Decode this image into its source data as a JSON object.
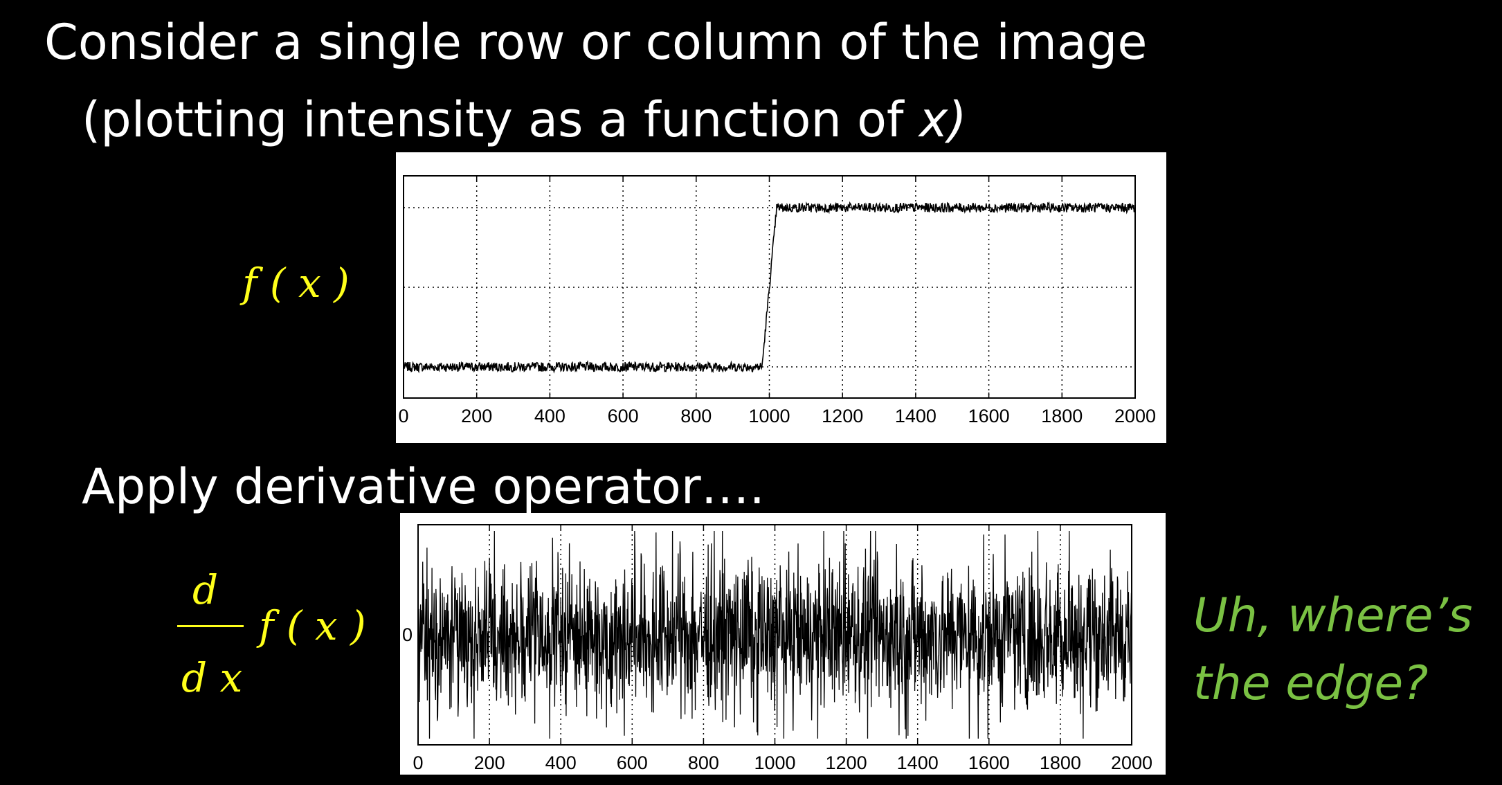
{
  "text": {
    "line1": "Consider a single row or column of the image",
    "line2_a": "(plotting intensity as a function of ",
    "line2_x": "x)",
    "line3": "Apply derivative operator….",
    "eq_fx": "f ( x )",
    "eq_d_num": "d",
    "eq_d_den": "d x",
    "eq_dfx": "f ( x )",
    "note_line1": "Uh, where’s",
    "note_line2": "the edge?"
  },
  "colors": {
    "background": "#000000",
    "text": "#ffffff",
    "equation": "#ffff1a",
    "note": "#7ac143",
    "plot_line": "#000000"
  },
  "chart_data": [
    {
      "type": "line",
      "title": "",
      "xlabel": "",
      "ylabel": "",
      "xlim": [
        0,
        2000
      ],
      "xticks": [
        0,
        200,
        400,
        600,
        800,
        1000,
        1200,
        1400,
        1600,
        1800,
        2000
      ],
      "yticks": [],
      "grid": true,
      "series": [
        {
          "description_points": [
            [
              0,
              0.0
            ],
            [
              980,
              0.0
            ],
            [
              1020,
              2.0
            ],
            [
              2000,
              2.0
            ]
          ],
          "noise_amplitude": 0.06
        }
      ]
    },
    {
      "type": "line",
      "title": "",
      "xlabel": "",
      "ylabel": "",
      "xlim": [
        0,
        2000
      ],
      "xticks": [
        0,
        200,
        400,
        600,
        800,
        1000,
        1200,
        1400,
        1600,
        1800,
        2000
      ],
      "yticks": [
        0
      ],
      "grid": true,
      "series": [
        {
          "description_points": [
            [
              0,
              0
            ],
            [
              2000,
              0
            ]
          ],
          "noise_amplitude": 1.0
        }
      ]
    }
  ]
}
